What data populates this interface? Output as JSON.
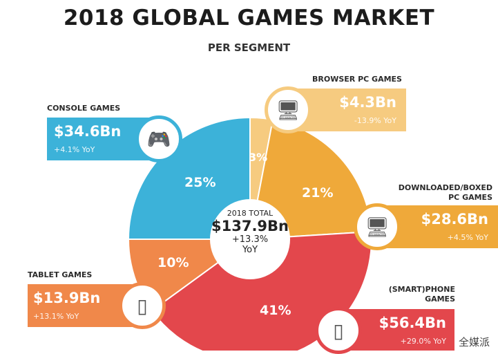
{
  "chart_data": {
    "type": "pie",
    "title": "2018 GLOBAL GAMES MARKET",
    "subtitle": "PER SEGMENT",
    "center": {
      "label": "2018 TOTAL",
      "value": "$137.9Bn",
      "growth": "+13.3%",
      "growth_unit": "YoY"
    },
    "segments": [
      {
        "name": "BROWSER PC GAMES",
        "share": 3,
        "share_label": "3%",
        "value": "$4.3Bn",
        "yoy": "-13.9% YoY",
        "color": "#f6cb80"
      },
      {
        "name": "DOWNLOADED/BOXED PC GAMES",
        "name_line1": "DOWNLOADED/BOXED",
        "name_line2": "PC GAMES",
        "share": 21,
        "share_label": "21%",
        "value": "$28.6Bn",
        "yoy": "+4.5% YoY",
        "color": "#efa93a"
      },
      {
        "name": "(SMART)PHONE GAMES",
        "name_line1": "(SMART)PHONE",
        "name_line2": "GAMES",
        "share": 41,
        "share_label": "41%",
        "value": "$56.4Bn",
        "yoy": "+29.0% YoY",
        "color": "#e3474c"
      },
      {
        "name": "TABLET GAMES",
        "share": 10,
        "share_label": "10%",
        "value": "$13.9Bn",
        "yoy": "+13.1% YoY",
        "color": "#f0884a"
      },
      {
        "name": "CONSOLE GAMES",
        "share": 25,
        "share_label": "25%",
        "value": "$34.6Bn",
        "yoy": "+4.1% YoY",
        "color": "#3cb2d9"
      }
    ]
  },
  "watermark": "全媒派"
}
